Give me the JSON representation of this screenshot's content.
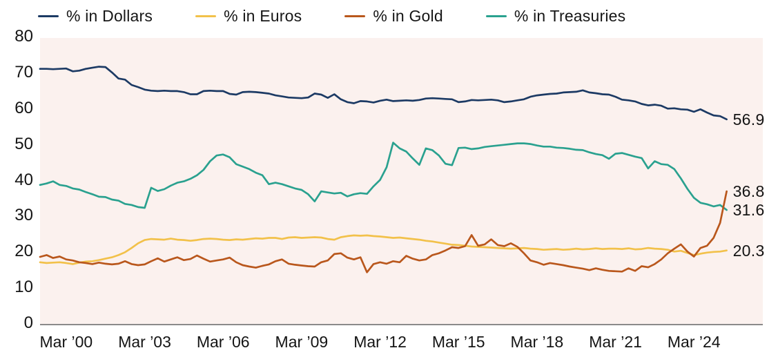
{
  "legend": {
    "items": [
      {
        "label": "% in Dollars",
        "color": "#1c3a64"
      },
      {
        "label": "% in Euros",
        "color": "#f2c14a"
      },
      {
        "label": "% in Gold",
        "color": "#b9571c"
      },
      {
        "label": "% in Treasuries",
        "color": "#2aa18f"
      }
    ]
  },
  "chart_data": {
    "type": "line",
    "title": "",
    "xlabel": "",
    "ylabel": "",
    "x_unit": "quarter",
    "x_start_label": "Mar 1999",
    "x_end_label": "Jun 2025",
    "x_count": 106,
    "ylim": [
      0,
      80
    ],
    "y_ticks": [
      0,
      10,
      20,
      30,
      40,
      50,
      60,
      70,
      80
    ],
    "x_tick_indices": [
      4,
      16,
      28,
      40,
      52,
      64,
      76,
      88,
      100
    ],
    "x_tick_labels": [
      "Mar ’00",
      "Mar ’03",
      "Mar ’06",
      "Mar ’09",
      "Mar ’12",
      "Mar ’15",
      "Mar ’18",
      "Mar ’21",
      "Mar ’24"
    ],
    "grid": false,
    "legend_position": "top",
    "plot_bg": "#fbf1ee",
    "page_bg": "#ffffff",
    "axis_color": "#7b7b7b",
    "text_color": "#141414",
    "series": [
      {
        "name": "% in Dollars",
        "color": "#1c3a64",
        "end_label": "56.9",
        "values": [
          71.0,
          71.0,
          70.9,
          71.0,
          71.1,
          70.3,
          70.5,
          71.0,
          71.3,
          71.6,
          71.5,
          70.0,
          68.3,
          68.0,
          66.5,
          65.9,
          65.2,
          64.9,
          64.8,
          64.9,
          64.8,
          64.8,
          64.5,
          63.9,
          63.9,
          64.8,
          64.9,
          64.8,
          64.8,
          64.0,
          63.8,
          64.5,
          64.6,
          64.5,
          64.3,
          64.1,
          63.6,
          63.3,
          63.0,
          62.9,
          62.8,
          63.0,
          64.1,
          63.8,
          62.9,
          63.9,
          62.5,
          61.7,
          61.4,
          62.0,
          61.9,
          61.6,
          62.1,
          62.4,
          62.0,
          62.1,
          62.2,
          62.1,
          62.3,
          62.7,
          62.8,
          62.7,
          62.6,
          62.5,
          61.7,
          61.9,
          62.3,
          62.2,
          62.3,
          62.4,
          62.2,
          61.7,
          61.9,
          62.2,
          62.5,
          63.2,
          63.6,
          63.8,
          64.0,
          64.1,
          64.4,
          64.5,
          64.6,
          65.0,
          64.4,
          64.2,
          63.9,
          63.8,
          63.2,
          62.4,
          62.2,
          61.9,
          61.2,
          60.8,
          61.0,
          60.7,
          59.9,
          60.0,
          59.7,
          59.6,
          59.0,
          59.7,
          58.8,
          58.0,
          57.8,
          56.9
        ]
      },
      {
        "name": "% in Euros",
        "color": "#f2c14a",
        "end_label": "20.3",
        "values": [
          17.0,
          16.8,
          16.9,
          17.0,
          16.8,
          16.5,
          16.9,
          17.2,
          17.3,
          17.6,
          18.0,
          18.4,
          19.0,
          19.8,
          21.0,
          22.3,
          23.2,
          23.5,
          23.4,
          23.3,
          23.6,
          23.3,
          23.2,
          23.0,
          23.2,
          23.5,
          23.6,
          23.5,
          23.3,
          23.2,
          23.4,
          23.3,
          23.5,
          23.7,
          23.6,
          23.8,
          23.8,
          23.5,
          23.9,
          24.0,
          23.8,
          23.9,
          24.0,
          23.9,
          23.5,
          23.3,
          24.0,
          24.3,
          24.5,
          24.4,
          24.5,
          24.3,
          24.2,
          24.0,
          23.8,
          23.9,
          23.7,
          23.5,
          23.3,
          23.0,
          22.8,
          22.5,
          22.2,
          21.9,
          21.8,
          21.6,
          21.4,
          21.3,
          21.2,
          21.1,
          21.0,
          20.9,
          20.8,
          20.9,
          21.0,
          20.8,
          20.7,
          20.5,
          20.6,
          20.7,
          20.5,
          20.6,
          20.8,
          20.6,
          20.7,
          20.9,
          20.7,
          20.8,
          20.8,
          20.7,
          20.9,
          20.6,
          20.7,
          21.0,
          20.8,
          20.7,
          20.5,
          20.0,
          20.2,
          19.6,
          19.0,
          19.4,
          19.7,
          19.9,
          20.0,
          20.3
        ]
      },
      {
        "name": "% in Gold",
        "color": "#b9571c",
        "end_label": "36.8",
        "values": [
          18.5,
          19.0,
          18.2,
          18.6,
          17.8,
          17.5,
          17.0,
          16.8,
          16.5,
          16.9,
          16.6,
          16.4,
          16.6,
          17.3,
          16.5,
          16.2,
          16.4,
          17.3,
          18.1,
          17.2,
          17.8,
          18.4,
          17.6,
          17.9,
          18.9,
          18.0,
          17.2,
          17.5,
          17.8,
          18.3,
          17.0,
          16.2,
          15.8,
          15.5,
          16.0,
          16.4,
          17.3,
          17.8,
          16.6,
          16.3,
          16.1,
          15.9,
          15.8,
          17.0,
          17.5,
          19.3,
          19.5,
          18.3,
          17.8,
          18.4,
          14.2,
          16.5,
          17.0,
          16.6,
          17.3,
          17.0,
          18.8,
          18.0,
          17.5,
          17.8,
          19.0,
          19.5,
          20.3,
          21.2,
          21.0,
          21.5,
          24.6,
          21.6,
          22.0,
          23.4,
          21.8,
          21.5,
          22.3,
          21.3,
          19.5,
          17.5,
          17.0,
          16.3,
          16.8,
          16.5,
          16.2,
          15.8,
          15.5,
          15.2,
          14.8,
          15.3,
          14.9,
          14.6,
          14.5,
          14.4,
          15.3,
          14.6,
          15.9,
          15.6,
          16.5,
          17.8,
          19.5,
          20.8,
          22.0,
          20.0,
          18.6,
          21.0,
          21.6,
          23.8,
          28.0,
          36.8
        ]
      },
      {
        "name": "% in Treasuries",
        "color": "#2aa18f",
        "end_label": "31.6",
        "values": [
          38.6,
          39.0,
          39.6,
          38.6,
          38.3,
          37.6,
          37.3,
          36.6,
          36.0,
          35.3,
          35.2,
          34.5,
          34.2,
          33.3,
          33.0,
          32.4,
          32.2,
          37.8,
          36.9,
          37.4,
          38.4,
          39.2,
          39.6,
          40.3,
          41.3,
          42.8,
          45.2,
          46.8,
          47.1,
          46.3,
          44.4,
          43.7,
          43.0,
          42.0,
          41.3,
          38.8,
          39.2,
          38.8,
          38.2,
          37.6,
          37.2,
          36.0,
          34.0,
          36.8,
          36.5,
          36.2,
          36.4,
          35.4,
          36.0,
          36.3,
          36.1,
          38.2,
          40.0,
          43.5,
          50.4,
          48.8,
          47.9,
          46.0,
          44.2,
          48.8,
          48.3,
          46.8,
          44.5,
          44.1,
          48.9,
          49.0,
          48.6,
          48.8,
          49.2,
          49.4,
          49.6,
          49.8,
          50.0,
          50.2,
          50.2,
          50.0,
          49.6,
          49.3,
          49.3,
          49.0,
          48.9,
          48.7,
          48.4,
          48.3,
          47.7,
          47.2,
          46.9,
          45.9,
          47.3,
          47.5,
          47.0,
          46.5,
          46.1,
          43.2,
          45.2,
          44.4,
          44.2,
          43.0,
          40.4,
          37.5,
          35.0,
          33.6,
          33.2,
          32.6,
          33.0,
          31.6
        ]
      }
    ]
  }
}
